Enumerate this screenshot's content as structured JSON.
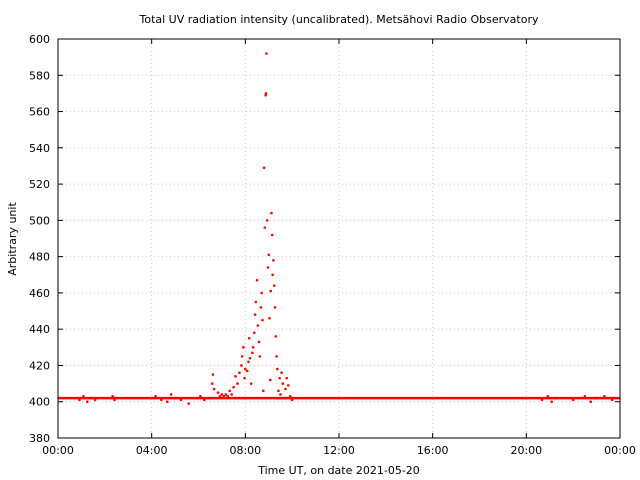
{
  "chart_data": {
    "type": "scatter",
    "title": "Total UV radiation intensity (uncalibrated). Metsähovi Radio Observatory",
    "xlabel": "Time UT, on date 2021-05-20",
    "ylabel": "Arbitrary unit",
    "xlim": [
      "00:00",
      "24:00"
    ],
    "ylim": [
      380,
      600
    ],
    "grid": true,
    "marker_color": "#ff0000",
    "x_ticks": [
      "00:00",
      "04:00",
      "08:00",
      "12:00",
      "16:00",
      "20:00",
      "00:00"
    ],
    "y_ticks": [
      380,
      400,
      420,
      440,
      460,
      480,
      500,
      520,
      540,
      560,
      580,
      600
    ],
    "series": [
      {
        "baseline": 402,
        "baseline_range": [
          "00:00",
          "24:00"
        ],
        "points": [
          [
            "00:55",
            401
          ],
          [
            "01:05",
            403
          ],
          [
            "01:15",
            400
          ],
          [
            "01:25",
            402
          ],
          [
            "01:35",
            401
          ],
          [
            "02:20",
            403
          ],
          [
            "02:25",
            401
          ],
          [
            "04:10",
            403
          ],
          [
            "04:25",
            401
          ],
          [
            "04:40",
            400
          ],
          [
            "04:50",
            404
          ],
          [
            "05:00",
            402
          ],
          [
            "05:15",
            401
          ],
          [
            "05:35",
            399
          ],
          [
            "06:05",
            403
          ],
          [
            "06:15",
            401
          ],
          [
            "06:30",
            402
          ],
          [
            "06:35",
            410
          ],
          [
            "06:37",
            415
          ],
          [
            "06:40",
            407
          ],
          [
            "06:50",
            405
          ],
          [
            "06:55",
            403
          ],
          [
            "07:00",
            404
          ],
          [
            "07:05",
            403
          ],
          [
            "07:10",
            404
          ],
          [
            "07:15",
            403
          ],
          [
            "07:20",
            406
          ],
          [
            "07:25",
            404
          ],
          [
            "07:30",
            408
          ],
          [
            "07:35",
            414
          ],
          [
            "07:40",
            410
          ],
          [
            "07:45",
            416
          ],
          [
            "07:50",
            420
          ],
          [
            "07:52",
            425
          ],
          [
            "07:55",
            430
          ],
          [
            "07:58",
            413
          ],
          [
            "08:00",
            418
          ],
          [
            "08:05",
            417
          ],
          [
            "08:08",
            422
          ],
          [
            "08:10",
            435
          ],
          [
            "08:12",
            424
          ],
          [
            "08:15",
            410
          ],
          [
            "08:18",
            427
          ],
          [
            "08:20",
            430
          ],
          [
            "08:23",
            438
          ],
          [
            "08:25",
            448
          ],
          [
            "08:27",
            455
          ],
          [
            "08:30",
            467
          ],
          [
            "08:32",
            442
          ],
          [
            "08:35",
            433
          ],
          [
            "08:37",
            425
          ],
          [
            "08:40",
            452
          ],
          [
            "08:42",
            460
          ],
          [
            "08:44",
            445
          ],
          [
            "08:46",
            406
          ],
          [
            "08:48",
            529
          ],
          [
            "08:50",
            496
          ],
          [
            "08:52",
            569
          ],
          [
            "08:53",
            570
          ],
          [
            "08:54",
            592
          ],
          [
            "08:56",
            500
          ],
          [
            "08:58",
            474
          ],
          [
            "09:00",
            481
          ],
          [
            "09:02",
            446
          ],
          [
            "09:04",
            412
          ],
          [
            "09:05",
            461
          ],
          [
            "09:07",
            504
          ],
          [
            "09:09",
            492
          ],
          [
            "09:10",
            470
          ],
          [
            "09:12",
            478
          ],
          [
            "09:14",
            464
          ],
          [
            "09:16",
            452
          ],
          [
            "09:18",
            436
          ],
          [
            "09:20",
            425
          ],
          [
            "09:22",
            418
          ],
          [
            "09:25",
            406
          ],
          [
            "09:28",
            413
          ],
          [
            "09:30",
            404
          ],
          [
            "09:33",
            416
          ],
          [
            "09:36",
            410
          ],
          [
            "09:40",
            402
          ],
          [
            "09:43",
            407
          ],
          [
            "09:46",
            413
          ],
          [
            "09:50",
            409
          ],
          [
            "09:55",
            403
          ],
          [
            "10:00",
            401
          ],
          [
            "20:40",
            401
          ],
          [
            "20:55",
            403
          ],
          [
            "21:05",
            400
          ],
          [
            "21:15",
            402
          ],
          [
            "22:00",
            401
          ],
          [
            "22:30",
            403
          ],
          [
            "22:45",
            400
          ],
          [
            "23:00",
            402
          ],
          [
            "23:20",
            403
          ],
          [
            "23:40",
            401
          ]
        ]
      }
    ]
  }
}
